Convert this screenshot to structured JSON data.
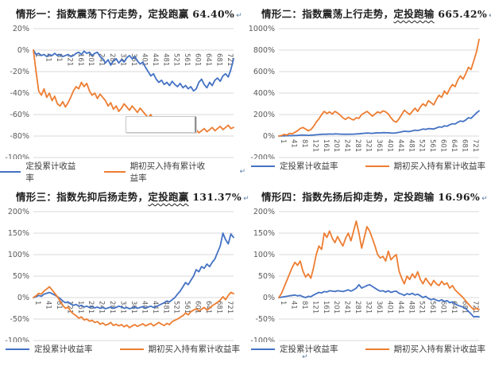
{
  "page": {
    "background": "#FFFFFF",
    "return_mark": "↵"
  },
  "colors": {
    "dca_blue": "#4472C4",
    "hold_orange": "#ED7D31",
    "grid_line": "#D9D9D9",
    "tick_text": "#595959",
    "title_text": "#1F1F1F",
    "wavy_red": "#E03030",
    "wavy_blue": "#3A6AC0",
    "return_mark": "#5B7FA6"
  },
  "legend": {
    "dca_label": "定投累计收益率",
    "hold_label": "期初买入持有累计收益率"
  },
  "charts": [
    {
      "title": {
        "pre": "情形一",
        "wavy": "",
        "post": "：指数震荡下行走势，定投跑赢 64.40%",
        "wavy_color": "colors.wavy_red",
        "return_mark": "↵"
      },
      "chart_data": {
        "type": "line",
        "title": "情形一：指数震荡下行走势，定投跑赢 64.40%",
        "xlabel": "",
        "ylabel": "",
        "x_start": 1,
        "x_step": 10,
        "x_ticks": [
          1,
          41,
          81,
          121,
          161,
          201,
          241,
          281,
          321,
          361,
          401,
          441,
          481,
          521,
          561,
          601,
          641,
          681,
          721
        ],
        "ylim": [
          -100,
          20
        ],
        "y_step": 20,
        "y_tick_suffix": "%",
        "grid": true,
        "legend_position": "bottom",
        "series": [
          {
            "name": "定投累计收益率",
            "color": "#4472C4",
            "values": [
              0,
              -4,
              -3,
              -5,
              -4,
              -6,
              -4,
              -5,
              -3,
              -5,
              -4,
              -6,
              -5,
              -4,
              -6,
              -5,
              -3,
              -2,
              -4,
              -1,
              -3,
              -2,
              -5,
              -3,
              -2,
              -6,
              -8,
              -12,
              -9,
              -14,
              -10,
              -8,
              -12,
              -9,
              -11,
              -7,
              -5,
              -8,
              -6,
              -10,
              -13,
              -11,
              -16,
              -20,
              -24,
              -22,
              -27,
              -30,
              -28,
              -32,
              -30,
              -33,
              -29,
              -32,
              -34,
              -31,
              -35,
              -33,
              -36,
              -34,
              -38,
              -36,
              -30,
              -27,
              -32,
              -35,
              -30,
              -33,
              -28,
              -26,
              -29,
              -24,
              -22,
              -25,
              -18,
              -8
            ]
          },
          {
            "name": "期初买入持有累计收益率",
            "color": "#ED7D31",
            "values": [
              0,
              -20,
              -38,
              -42,
              -36,
              -44,
              -40,
              -47,
              -43,
              -50,
              -52,
              -48,
              -53,
              -49,
              -44,
              -38,
              -34,
              -36,
              -30,
              -34,
              -31,
              -38,
              -42,
              -40,
              -45,
              -41,
              -44,
              -47,
              -52,
              -49,
              -55,
              -52,
              -57,
              -54,
              -50,
              -53,
              -56,
              -52,
              -55,
              -58,
              -54,
              -57,
              -60,
              -63,
              -60,
              -65,
              -62,
              -66,
              -63,
              -67,
              -70,
              -68,
              -72,
              -70,
              -73,
              -71,
              -74,
              -72,
              -75,
              -73,
              -76,
              -74,
              -77,
              -75,
              -73,
              -76,
              -74,
              -72,
              -75,
              -73,
              -71,
              -74,
              -72,
              -70,
              -73,
              -72
            ]
          }
        ]
      }
    },
    {
      "title": {
        "pre": "情形二：指数震荡上行走势，",
        "wavy": "定投跑输",
        "post": " 665.42%",
        "wavy_color": "colors.wavy_blue",
        "return_mark": "↵"
      },
      "chart_data": {
        "type": "line",
        "title": "情形二：指数震荡上行走势，定投跑输 665.42%",
        "xlabel": "",
        "ylabel": "",
        "x_start": 1,
        "x_step": 10,
        "x_ticks": [
          1,
          41,
          81,
          121,
          161,
          201,
          241,
          281,
          321,
          361,
          401,
          441,
          481,
          521,
          561,
          601,
          641,
          681,
          721
        ],
        "ylim": [
          -200,
          1000
        ],
        "y_step": 200,
        "y_tick_suffix": "%",
        "grid": true,
        "legend_position": "bottom",
        "series": [
          {
            "name": "定投累计收益率",
            "color": "#4472C4",
            "values": [
              0,
              1,
              2,
              3,
              4,
              4,
              5,
              6,
              8,
              9,
              8,
              7,
              8,
              10,
              12,
              14,
              16,
              18,
              17,
              19,
              18,
              20,
              19,
              18,
              17,
              16,
              18,
              17,
              18,
              20,
              21,
              24,
              26,
              28,
              27,
              25,
              28,
              30,
              29,
              32,
              31,
              30,
              28,
              27,
              30,
              34,
              40,
              45,
              43,
              42,
              48,
              55,
              52,
              58,
              65,
              62,
              70,
              68,
              66,
              75,
              85,
              82,
              95,
              92,
              105,
              115,
              112,
              128,
              140,
              135,
              150,
              170,
              165,
              190,
              215,
              235
            ]
          },
          {
            "name": "期初买入持有累计收益率",
            "color": "#ED7D31",
            "values": [
              0,
              5,
              15,
              10,
              25,
              20,
              35,
              50,
              70,
              80,
              65,
              50,
              60,
              90,
              130,
              160,
              200,
              230,
              210,
              225,
              205,
              230,
              215,
              195,
              170,
              155,
              175,
              160,
              150,
              170,
              165,
              200,
              215,
              230,
              210,
              185,
              205,
              225,
              215,
              235,
              225,
              205,
              170,
              140,
              130,
              160,
              200,
              240,
              220,
              200,
              230,
              260,
              230,
              270,
              300,
              280,
              330,
              310,
              290,
              340,
              380,
              360,
              420,
              390,
              440,
              480,
              460,
              520,
              560,
              530,
              580,
              640,
              620,
              700,
              780,
              900
            ]
          }
        ]
      }
    },
    {
      "title": {
        "pre": "情形三：指数先抑后扬走势，",
        "wavy": "定投跑赢",
        "post": " 131.37%",
        "wavy_color": "colors.wavy_blue",
        "return_mark": "↵"
      },
      "chart_data": {
        "type": "line",
        "title": "情形三：指数先抑后扬走势，定投跑赢 131.37%",
        "xlabel": "",
        "ylabel": "",
        "x_start": 1,
        "x_step": 10,
        "x_ticks": [
          1,
          41,
          81,
          121,
          161,
          201,
          241,
          281,
          321,
          361,
          401,
          441,
          481,
          521,
          561,
          601,
          641,
          681,
          721
        ],
        "ylim": [
          -100,
          200
        ],
        "y_step": 50,
        "y_tick_suffix": "%",
        "grid": true,
        "legend_position": "bottom",
        "series": [
          {
            "name": "定投累计收益率",
            "color": "#4472C4",
            "values": [
              0,
              2,
              5,
              3,
              8,
              10,
              12,
              9,
              6,
              2,
              -2,
              -8,
              -12,
              -10,
              -15,
              -18,
              -16,
              -20,
              -18,
              -22,
              -20,
              -23,
              -21,
              -24,
              -22,
              -25,
              -23,
              -26,
              -24,
              -22,
              -25,
              -23,
              -20,
              -22,
              -25,
              -23,
              -26,
              -24,
              -22,
              -25,
              -23,
              -21,
              -24,
              -22,
              -20,
              -23,
              -21,
              -18,
              -15,
              -12,
              -8,
              -10,
              -5,
              0,
              8,
              15,
              25,
              35,
              30,
              40,
              50,
              65,
              60,
              72,
              68,
              78,
              72,
              82,
              90,
              105,
              120,
              150,
              135,
              125,
              148,
              140
            ]
          },
          {
            "name": "期初买入持有累计收益率",
            "color": "#ED7D31",
            "values": [
              0,
              4,
              10,
              8,
              15,
              20,
              25,
              18,
              10,
              2,
              -8,
              -18,
              -25,
              -22,
              -32,
              -38,
              -42,
              -48,
              -45,
              -52,
              -50,
              -55,
              -53,
              -58,
              -56,
              -62,
              -59,
              -64,
              -62,
              -58,
              -65,
              -62,
              -66,
              -63,
              -68,
              -64,
              -70,
              -66,
              -63,
              -67,
              -64,
              -61,
              -66,
              -63,
              -60,
              -66,
              -62,
              -58,
              -62,
              -65,
              -60,
              -63,
              -56,
              -53,
              -50,
              -46,
              -42,
              -36,
              -40,
              -33,
              -29,
              -26,
              -31,
              -27,
              -23,
              -29,
              -25,
              -19,
              -15,
              -11,
              -6,
              2,
              -5,
              5,
              12,
              9
            ]
          }
        ]
      }
    },
    {
      "title": {
        "pre": "情形四：指数先扬后抑走势，定投跑输 16.96%",
        "wavy": "",
        "post": "",
        "wavy_color": "colors.wavy_blue",
        "return_mark": "↵"
      },
      "chart_data": {
        "type": "line",
        "title": "情形四：指数先扬后抑走势，定投跑输 16.96%",
        "xlabel": "",
        "ylabel": "",
        "x_start": 1,
        "x_step": 10,
        "x_ticks": [
          1,
          41,
          81,
          121,
          161,
          201,
          241,
          281,
          321,
          361,
          401,
          441,
          481,
          521,
          561,
          601,
          641,
          681,
          721
        ],
        "ylim": [
          -100,
          200
        ],
        "y_step": 50,
        "y_tick_suffix": "%",
        "grid": true,
        "legend_position": "bottom",
        "series": [
          {
            "name": "定投累计收益率",
            "color": "#4472C4",
            "values": [
              0,
              1,
              2,
              3,
              4,
              5,
              6,
              4,
              5,
              2,
              0,
              3,
              2,
              6,
              9,
              12,
              11,
              14,
              13,
              16,
              15,
              14,
              16,
              15,
              14,
              16,
              18,
              15,
              18,
              22,
              30,
              22,
              25,
              28,
              30,
              26,
              22,
              18,
              15,
              16,
              13,
              16,
              12,
              14,
              15,
              10,
              8,
              5,
              9,
              7,
              10,
              6,
              8,
              4,
              0,
              3,
              -2,
              -5,
              -3,
              -6,
              -8,
              -5,
              -9,
              -7,
              -12,
              -10,
              -15,
              -18,
              -20,
              -22,
              -26,
              -32,
              -38,
              -45,
              -44,
              -45
            ]
          },
          {
            "name": "期初买入持有累计收益率",
            "color": "#ED7D31",
            "values": [
              0,
              10,
              25,
              40,
              55,
              70,
              82,
              75,
              85,
              62,
              48,
              55,
              45,
              70,
              100,
              120,
              112,
              150,
              140,
              155,
              138,
              128,
              142,
              130,
              120,
              138,
              150,
              132,
              155,
              178,
              150,
              115,
              140,
              165,
              155,
              138,
              120,
              100,
              92,
              96,
              85,
              108,
              88,
              95,
              100,
              62,
              45,
              32,
              50,
              42,
              55,
              46,
              60,
              42,
              32,
              45,
              36,
              28,
              40,
              32,
              28,
              38,
              30,
              34,
              22,
              28,
              18,
              12,
              6,
              0,
              -8,
              -15,
              -22,
              -28,
              -25,
              -28
            ]
          }
        ]
      }
    }
  ]
}
